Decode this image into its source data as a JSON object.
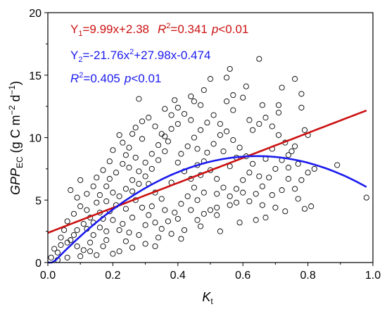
{
  "chart_data": {
    "type": "scatter",
    "xlabel": {
      "main": "K",
      "sub": "t"
    },
    "ylabel": {
      "main": "GPP",
      "sub": "EC",
      "unit_prefix": " (g C m",
      "unit_exp1": "−2",
      "unit_mid": " d",
      "unit_exp2": "−1",
      "unit_suffix": ")"
    },
    "xlim": [
      0.0,
      1.0
    ],
    "ylim": [
      0,
      20
    ],
    "x_ticks": [
      "0.0",
      "0.2",
      "0.4",
      "0.6",
      "0.8",
      "1.0"
    ],
    "y_ticks": [
      "0",
      "5",
      "10",
      "15",
      "20"
    ],
    "grid": false,
    "fits": [
      {
        "name": "linear",
        "color": "#cc1111",
        "coefficients": [
          9.99,
          2.38
        ],
        "x_range": [
          0.0,
          0.98
        ],
        "equation": {
          "lead": "Y",
          "sub": "1",
          "text": "=9.99x+2.38"
        },
        "r2": {
          "label": "R",
          "exp": "2",
          "value": "=0.341",
          "p_label": "p",
          "p_value": "<0.01"
        }
      },
      {
        "name": "quadratic",
        "color": "#1a1aee",
        "coefficients": [
          -21.76,
          27.98,
          -0.474
        ],
        "x_range": [
          0.0,
          0.98
        ],
        "equation": {
          "lead": "Y",
          "sub": "2",
          "part1": "=-21.76x",
          "exp": "2",
          "part2": "+27.98x-0.474"
        },
        "r2": {
          "label": "R",
          "exp": "2",
          "value": "=0.405",
          "p_label": "p",
          "p_value": "<0.01"
        }
      }
    ],
    "points": [
      [
        0.98,
        5.2
      ],
      [
        0.89,
        7.8
      ],
      [
        0.81,
        4.5
      ],
      [
        0.79,
        4.3
      ],
      [
        0.77,
        5.1
      ],
      [
        0.76,
        14.7
      ],
      [
        0.78,
        13.5
      ],
      [
        0.72,
        14.0
      ],
      [
        0.65,
        16.3
      ],
      [
        0.61,
        14.1
      ],
      [
        0.56,
        15.5
      ],
      [
        0.55,
        14.8
      ],
      [
        0.57,
        13.4
      ],
      [
        0.5,
        14.7
      ],
      [
        0.48,
        13.8
      ],
      [
        0.45,
        12.9
      ],
      [
        0.39,
        13.0
      ],
      [
        0.28,
        13.1
      ],
      [
        0.4,
        12.4
      ],
      [
        0.38,
        11.8
      ],
      [
        0.47,
        12.6
      ],
      [
        0.55,
        12.9
      ],
      [
        0.6,
        13.2
      ],
      [
        0.66,
        12.6
      ],
      [
        0.71,
        12.0
      ],
      [
        0.78,
        12.4
      ],
      [
        0.8,
        10.2
      ],
      [
        0.82,
        7.5
      ],
      [
        0.74,
        7.6
      ],
      [
        0.69,
        5.4
      ],
      [
        0.73,
        4.1
      ],
      [
        0.67,
        3.6
      ],
      [
        0.64,
        3.4
      ],
      [
        0.58,
        4.8
      ],
      [
        0.52,
        4.4
      ],
      [
        0.48,
        3.9
      ],
      [
        0.46,
        3.4
      ],
      [
        0.42,
        2.6
      ],
      [
        0.38,
        2.3
      ],
      [
        0.34,
        2.0
      ],
      [
        0.3,
        1.5
      ],
      [
        0.26,
        1.2
      ],
      [
        0.22,
        0.9
      ],
      [
        0.2,
        0.7
      ],
      [
        0.15,
        0.6
      ],
      [
        0.1,
        0.5
      ],
      [
        0.06,
        0.4
      ],
      [
        0.03,
        0.2
      ],
      [
        0.02,
        1.1
      ],
      [
        0.04,
        1.4
      ],
      [
        0.07,
        1.8
      ],
      [
        0.09,
        2.6
      ],
      [
        0.11,
        3.1
      ],
      [
        0.13,
        3.6
      ],
      [
        0.12,
        4.2
      ],
      [
        0.15,
        4.8
      ],
      [
        0.16,
        5.4
      ],
      [
        0.18,
        6.1
      ],
      [
        0.19,
        6.7
      ],
      [
        0.21,
        7.2
      ],
      [
        0.23,
        7.9
      ],
      [
        0.24,
        8.6
      ],
      [
        0.25,
        9.2
      ],
      [
        0.22,
        10.2
      ],
      [
        0.27,
        10.8
      ],
      [
        0.29,
        11.3
      ],
      [
        0.31,
        11.6
      ],
      [
        0.33,
        10.9
      ],
      [
        0.35,
        10.3
      ],
      [
        0.37,
        9.7
      ],
      [
        0.36,
        8.9
      ],
      [
        0.34,
        8.2
      ],
      [
        0.32,
        7.5
      ],
      [
        0.3,
        6.9
      ],
      [
        0.28,
        6.3
      ],
      [
        0.26,
        5.7
      ],
      [
        0.27,
        5.0
      ],
      [
        0.29,
        4.4
      ],
      [
        0.31,
        3.8
      ],
      [
        0.33,
        3.2
      ],
      [
        0.35,
        2.7
      ],
      [
        0.37,
        3.3
      ],
      [
        0.39,
        4.0
      ],
      [
        0.41,
        4.7
      ],
      [
        0.43,
        5.3
      ],
      [
        0.45,
        6.0
      ],
      [
        0.44,
        6.7
      ],
      [
        0.42,
        7.3
      ],
      [
        0.4,
        8.0
      ],
      [
        0.41,
        8.7
      ],
      [
        0.43,
        9.3
      ],
      [
        0.45,
        10.0
      ],
      [
        0.47,
        10.6
      ],
      [
        0.49,
        11.2
      ],
      [
        0.51,
        11.8
      ],
      [
        0.53,
        11.1
      ],
      [
        0.55,
        10.5
      ],
      [
        0.57,
        9.8
      ],
      [
        0.59,
        9.2
      ],
      [
        0.61,
        8.5
      ],
      [
        0.63,
        7.9
      ],
      [
        0.62,
        7.2
      ],
      [
        0.6,
        6.6
      ],
      [
        0.58,
        5.9
      ],
      [
        0.56,
        5.3
      ],
      [
        0.54,
        6.0
      ],
      [
        0.52,
        6.7
      ],
      [
        0.5,
        7.4
      ],
      [
        0.48,
        8.1
      ],
      [
        0.49,
        8.8
      ],
      [
        0.51,
        9.5
      ],
      [
        0.53,
        10.2
      ],
      [
        0.63,
        10.6
      ],
      [
        0.65,
        11.1
      ],
      [
        0.67,
        11.6
      ],
      [
        0.69,
        10.9
      ],
      [
        0.71,
        10.2
      ],
      [
        0.73,
        9.6
      ],
      [
        0.75,
        8.9
      ],
      [
        0.72,
        8.2
      ],
      [
        0.7,
        7.5
      ],
      [
        0.68,
        6.8
      ],
      [
        0.66,
        6.1
      ],
      [
        0.64,
        5.5
      ],
      [
        0.62,
        4.9
      ],
      [
        0.7,
        4.4
      ],
      [
        0.76,
        5.9
      ],
      [
        0.78,
        6.6
      ],
      [
        0.8,
        7.2
      ],
      [
        0.77,
        7.9
      ],
      [
        0.74,
        8.6
      ],
      [
        0.76,
        9.3
      ],
      [
        0.79,
        10.6
      ],
      [
        0.07,
        5.8
      ],
      [
        0.09,
        5.2
      ],
      [
        0.1,
        4.5
      ],
      [
        0.08,
        3.9
      ],
      [
        0.06,
        3.3
      ],
      [
        0.05,
        2.6
      ],
      [
        0.04,
        2.0
      ],
      [
        0.14,
        2.2
      ],
      [
        0.16,
        2.8
      ],
      [
        0.17,
        3.5
      ],
      [
        0.19,
        4.1
      ],
      [
        0.2,
        3.4
      ],
      [
        0.18,
        2.5
      ],
      [
        0.13,
        1.6
      ],
      [
        0.11,
        1.0
      ],
      [
        0.17,
        1.3
      ],
      [
        0.24,
        1.7
      ],
      [
        0.25,
        2.4
      ],
      [
        0.23,
        3.1
      ],
      [
        0.21,
        4.6
      ],
      [
        0.22,
        5.3
      ],
      [
        0.24,
        5.9
      ],
      [
        0.26,
        6.6
      ],
      [
        0.28,
        7.3
      ],
      [
        0.3,
        8.0
      ],
      [
        0.32,
        8.7
      ],
      [
        0.34,
        9.4
      ],
      [
        0.36,
        10.1
      ],
      [
        0.38,
        10.7
      ],
      [
        0.4,
        11.1
      ],
      [
        0.42,
        11.9
      ],
      [
        0.44,
        11.4
      ],
      [
        0.46,
        9.1
      ],
      [
        0.47,
        7.0
      ],
      [
        0.46,
        5.0
      ],
      [
        0.44,
        4.2
      ],
      [
        0.4,
        3.5
      ],
      [
        0.36,
        4.2
      ],
      [
        0.33,
        5.6
      ],
      [
        0.31,
        6.3
      ],
      [
        0.29,
        9.9
      ],
      [
        0.27,
        8.4
      ],
      [
        0.25,
        7.6
      ],
      [
        0.19,
        8.1
      ],
      [
        0.17,
        7.4
      ],
      [
        0.15,
        6.8
      ],
      [
        0.14,
        6.1
      ],
      [
        0.12,
        5.5
      ],
      [
        0.1,
        6.6
      ],
      [
        0.2,
        9.0
      ],
      [
        0.23,
        9.6
      ],
      [
        0.26,
        10.3
      ],
      [
        0.52,
        3.8
      ],
      [
        0.56,
        4.6
      ],
      [
        0.6,
        5.6
      ],
      [
        0.65,
        6.9
      ],
      [
        0.67,
        8.3
      ],
      [
        0.69,
        9.1
      ],
      [
        0.58,
        8.4
      ],
      [
        0.54,
        8.9
      ],
      [
        0.56,
        7.7
      ],
      [
        0.52,
        5.5
      ],
      [
        0.5,
        4.2
      ],
      [
        0.48,
        5.6
      ],
      [
        0.46,
        7.8
      ],
      [
        0.38,
        6.4
      ],
      [
        0.35,
        5.1
      ],
      [
        0.32,
        4.5
      ],
      [
        0.3,
        3.0
      ],
      [
        0.28,
        2.2
      ],
      [
        0.26,
        3.6
      ],
      [
        0.24,
        4.3
      ],
      [
        0.2,
        5.6
      ],
      [
        0.18,
        4.9
      ],
      [
        0.16,
        4.0
      ],
      [
        0.14,
        3.2
      ],
      [
        0.12,
        2.7
      ],
      [
        0.08,
        2.2
      ],
      [
        0.06,
        1.6
      ],
      [
        0.03,
        0.8
      ],
      [
        0.01,
        0.4
      ],
      [
        0.09,
        1.3
      ],
      [
        0.13,
        0.9
      ],
      [
        0.18,
        1.8
      ],
      [
        0.22,
        2.6
      ],
      [
        0.33,
        1.3
      ],
      [
        0.41,
        1.9
      ],
      [
        0.47,
        2.9
      ],
      [
        0.53,
        2.5
      ],
      [
        0.59,
        3.2
      ],
      [
        0.66,
        4.6
      ],
      [
        0.72,
        5.8
      ],
      [
        0.74,
        6.7
      ],
      [
        0.71,
        12.6
      ],
      [
        0.62,
        11.4
      ],
      [
        0.57,
        12.2
      ],
      [
        0.44,
        13.3
      ],
      [
        0.36,
        12.3
      ]
    ]
  }
}
